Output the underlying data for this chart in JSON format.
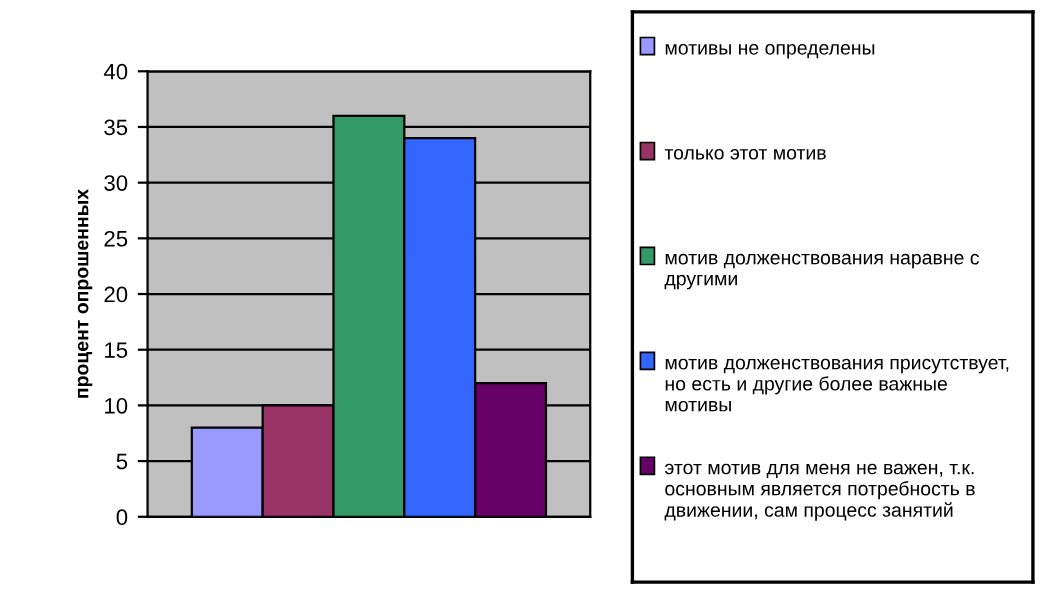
{
  "chart_data": {
    "type": "bar",
    "ylabel": "процент опрошенных",
    "categories": [
      null
    ],
    "series": [
      {
        "name": "мотивы не определены",
        "color": "#9999ff",
        "values": [
          8
        ]
      },
      {
        "name": "только этот мотив",
        "color": "#993366",
        "values": [
          10
        ]
      },
      {
        "name": "мотив долженствования наравне с другими",
        "color": "#339966",
        "values": [
          36
        ]
      },
      {
        "name": "мотив долженствования присутствует, но есть и другие более важные мотивы",
        "color": "#3366ff",
        "values": [
          34
        ]
      },
      {
        "name": "этот мотив для меня не важен, т.к. основным является потребность в движении, сам процесс занятий",
        "color": "#660066",
        "values": [
          12
        ]
      }
    ],
    "ylim": [
      0,
      40
    ],
    "yticks": [
      0,
      5,
      10,
      15,
      20,
      25,
      30,
      35,
      40
    ],
    "grid": "y",
    "legend": "right"
  }
}
